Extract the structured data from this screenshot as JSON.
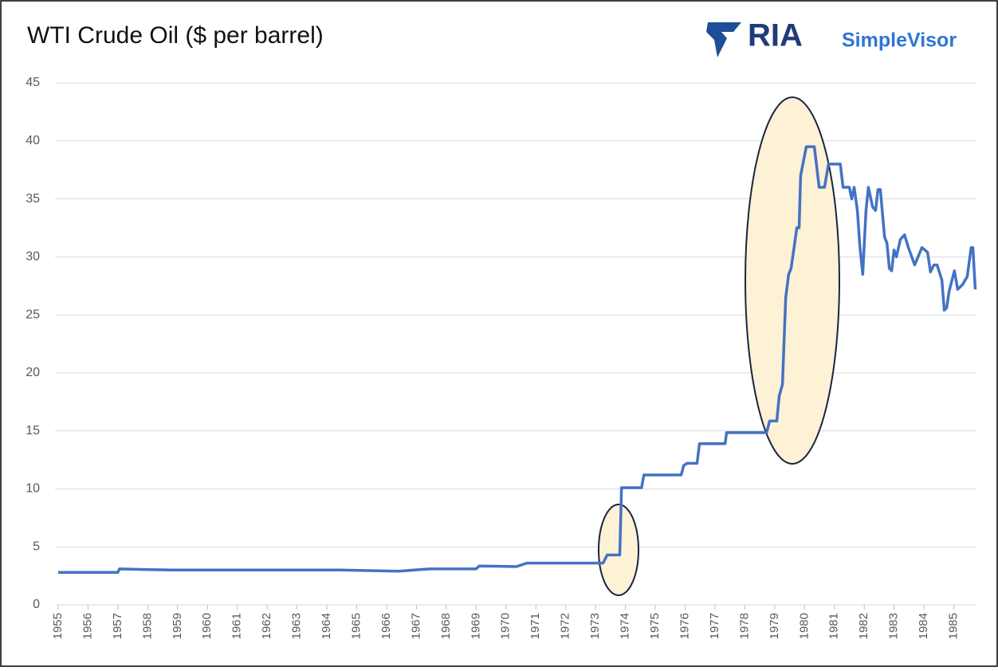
{
  "chart_data": {
    "type": "line",
    "title": "WTI Crude Oil ($ per barrel)",
    "logo": {
      "brand": "RIA",
      "product": "SimpleVisor"
    },
    "x": [
      1955.0,
      1957.0,
      1957.05,
      1957.86,
      1958.8,
      1964.4,
      1966.4,
      1966.93,
      1967.46,
      1969.0,
      1969.1,
      1970.35,
      1970.7,
      1973.25,
      1973.39,
      1973.81,
      1973.87,
      1974.54,
      1974.62,
      1975.87,
      1975.95,
      1976.06,
      1976.4,
      1976.48,
      1977.34,
      1977.39,
      1978.73,
      1978.83,
      1979.07,
      1979.15,
      1979.26,
      1979.37,
      1979.47,
      1979.55,
      1979.66,
      1979.74,
      1979.82,
      1979.87,
      1980.06,
      1980.33,
      1980.49,
      1980.67,
      1980.8,
      1981.2,
      1981.29,
      1981.5,
      1981.58,
      1981.66,
      1981.77,
      1981.85,
      1981.95,
      1982.06,
      1982.14,
      1982.28,
      1982.38,
      1982.46,
      1982.54,
      1982.68,
      1982.76,
      1982.84,
      1982.92,
      1983.0,
      1983.08,
      1983.21,
      1983.35,
      1983.48,
      1983.69,
      1983.93,
      1984.12,
      1984.22,
      1984.33,
      1984.44,
      1984.6,
      1984.68,
      1984.76,
      1984.84,
      1985.02,
      1985.13,
      1985.29,
      1985.45,
      1985.58,
      1985.64,
      1985.72
    ],
    "values": [
      2.8,
      2.8,
      3.1,
      3.05,
      3.0,
      3.0,
      2.9,
      3.0,
      3.1,
      3.1,
      3.35,
      3.3,
      3.6,
      3.6,
      4.3,
      4.3,
      10.1,
      10.1,
      11.2,
      11.2,
      12.0,
      12.2,
      12.2,
      13.9,
      13.9,
      14.85,
      14.85,
      15.85,
      15.85,
      18,
      19,
      26.5,
      28.5,
      29,
      31,
      32.5,
      32.5,
      37,
      39.5,
      39.5,
      36,
      36,
      38,
      38,
      36,
      36,
      35,
      36,
      34,
      31,
      28.5,
      34,
      36,
      34.3,
      34,
      35.8,
      35.8,
      31.7,
      31.2,
      29,
      28.8,
      30.6,
      30,
      31.5,
      31.9,
      30.8,
      29.3,
      30.8,
      30.4,
      28.7,
      29.3,
      29.3,
      28,
      25.4,
      25.6,
      27,
      28.8,
      27.2,
      27.6,
      28.3,
      30.8,
      30.8,
      27.2
    ],
    "color": "#4472c4",
    "xlim": [
      1955,
      1986
    ],
    "xticks": [
      1955,
      1956,
      1957,
      1958,
      1959,
      1960,
      1961,
      1962,
      1963,
      1964,
      1965,
      1966,
      1967,
      1968,
      1969,
      1970,
      1971,
      1972,
      1973,
      1974,
      1975,
      1976,
      1977,
      1978,
      1979,
      1980,
      1981,
      1982,
      1983,
      1984,
      1985
    ],
    "ylim": [
      0,
      45
    ],
    "yticks": [
      0,
      5,
      10,
      15,
      20,
      25,
      30,
      35,
      40,
      45
    ],
    "grid": true
  }
}
